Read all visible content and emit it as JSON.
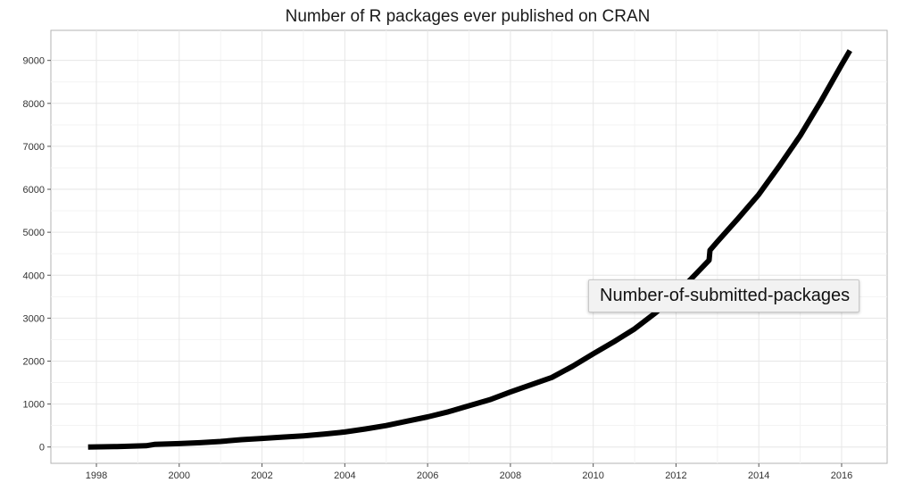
{
  "chart_data": {
    "type": "line",
    "title": "Number of R packages ever published on CRAN",
    "xlabel": "",
    "ylabel": "",
    "xlim": [
      1996.9,
      2017.1
    ],
    "ylim": [
      -380,
      9700
    ],
    "x_ticks": [
      1998,
      2000,
      2002,
      2004,
      2006,
      2008,
      2010,
      2012,
      2014,
      2016
    ],
    "y_ticks": [
      0,
      1000,
      2000,
      3000,
      4000,
      5000,
      6000,
      7000,
      8000,
      9000
    ],
    "grid": true,
    "series": [
      {
        "color": "#000000",
        "x": [
          1997.8,
          1998.5,
          1999.2,
          1999.4,
          2000.0,
          2000.5,
          2001.0,
          2001.5,
          2002.0,
          2002.5,
          2003.0,
          2003.5,
          2004.0,
          2004.5,
          2005.0,
          2005.5,
          2006.0,
          2006.5,
          2007.0,
          2007.5,
          2008.0,
          2008.5,
          2009.0,
          2009.5,
          2010.0,
          2010.5,
          2011.0,
          2011.5,
          2012.0,
          2012.5,
          2012.8,
          2012.82,
          2013.0,
          2013.5,
          2014.0,
          2014.5,
          2015.0,
          2015.5,
          2016.0,
          2016.2
        ],
        "y": [
          0,
          10,
          30,
          60,
          80,
          100,
          130,
          170,
          200,
          230,
          260,
          300,
          350,
          420,
          500,
          600,
          700,
          820,
          960,
          1100,
          1280,
          1450,
          1620,
          1880,
          2170,
          2450,
          2750,
          3120,
          3550,
          4050,
          4350,
          4580,
          4780,
          5320,
          5880,
          6550,
          7250,
          8050,
          8900,
          9230
        ]
      }
    ]
  },
  "tooltip": {
    "text": "Number-of-submitted-packages"
  }
}
